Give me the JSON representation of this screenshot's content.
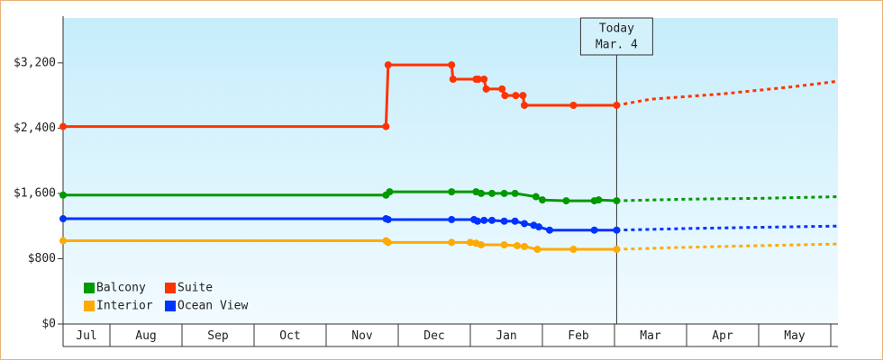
{
  "chart_data": {
    "type": "line",
    "xlim": [
      0.35,
      11.1
    ],
    "ylim": [
      0,
      3750
    ],
    "xticks": [
      {
        "value": 0,
        "label": "Jul"
      },
      {
        "value": 1,
        "label": "Aug"
      },
      {
        "value": 2,
        "label": "Sep"
      },
      {
        "value": 3,
        "label": "Oct"
      },
      {
        "value": 4,
        "label": "Nov"
      },
      {
        "value": 5,
        "label": "Dec"
      },
      {
        "value": 6,
        "label": "Jan"
      },
      {
        "value": 7,
        "label": "Feb"
      },
      {
        "value": 8,
        "label": "Mar"
      },
      {
        "value": 9,
        "label": "Apr"
      },
      {
        "value": 10,
        "label": "May"
      },
      {
        "value": 11,
        "label": ""
      }
    ],
    "yticks": [
      {
        "value": 0,
        "label": "$0"
      },
      {
        "value": 800,
        "label": "$800"
      },
      {
        "value": 1600,
        "label": "$1,600"
      },
      {
        "value": 2400,
        "label": "$2,400"
      },
      {
        "value": 3200,
        "label": "$3,200"
      }
    ],
    "grid": false,
    "legend": "lower left",
    "today": {
      "x": 8.03,
      "label": [
        "Today",
        "Mar. 4"
      ]
    },
    "series": [
      {
        "name": "Balcony",
        "color": "#009900",
        "x": [
          0.35,
          4.83,
          4.88,
          5.74,
          6.08,
          6.15,
          6.3,
          6.47,
          6.62,
          6.91,
          7.0,
          7.33,
          7.72,
          7.78,
          8.03
        ],
        "values": [
          1580,
          1580,
          1620,
          1620,
          1620,
          1600,
          1600,
          1600,
          1600,
          1560,
          1520,
          1510,
          1510,
          1520,
          1510
        ],
        "forecast_x": [
          8.03,
          9,
          10,
          11.1
        ],
        "forecast_values": [
          1510,
          1530,
          1540,
          1560
        ]
      },
      {
        "name": "Suite",
        "color": "#ff3300",
        "x": [
          0.35,
          4.83,
          4.86,
          5.74,
          5.76,
          6.08,
          6.11,
          6.19,
          6.22,
          6.44,
          6.48,
          6.63,
          6.73,
          6.75,
          7.43,
          8.03
        ],
        "values": [
          2420,
          2420,
          3175,
          3175,
          3000,
          3000,
          3000,
          3000,
          2880,
          2880,
          2800,
          2800,
          2800,
          2680,
          2680,
          2680
        ],
        "forecast_x": [
          8.03,
          8.5,
          9.5,
          10.5,
          11.1
        ],
        "forecast_values": [
          2680,
          2755,
          2820,
          2910,
          2975
        ]
      },
      {
        "name": "Interior",
        "color": "#ffaa00",
        "x": [
          0.35,
          4.83,
          4.86,
          5.74,
          6.0,
          6.08,
          6.15,
          6.47,
          6.65,
          6.75,
          6.93,
          7.43,
          8.03
        ],
        "values": [
          1020,
          1020,
          1000,
          1000,
          1000,
          990,
          970,
          970,
          960,
          950,
          915,
          915,
          915
        ],
        "forecast_x": [
          8.03,
          9,
          10,
          11.1
        ],
        "forecast_values": [
          915,
          940,
          960,
          980
        ]
      },
      {
        "name": "Ocean View",
        "color": "#0033ff",
        "x": [
          0.35,
          4.83,
          4.86,
          5.74,
          6.05,
          6.1,
          6.19,
          6.3,
          6.47,
          6.62,
          6.75,
          6.88,
          6.95,
          7.1,
          7.72,
          8.03
        ],
        "values": [
          1290,
          1290,
          1280,
          1280,
          1280,
          1260,
          1270,
          1270,
          1260,
          1260,
          1230,
          1210,
          1190,
          1150,
          1150,
          1150
        ],
        "forecast_x": [
          8.03,
          9,
          10,
          11.1
        ],
        "forecast_values": [
          1150,
          1170,
          1185,
          1200
        ]
      }
    ]
  }
}
